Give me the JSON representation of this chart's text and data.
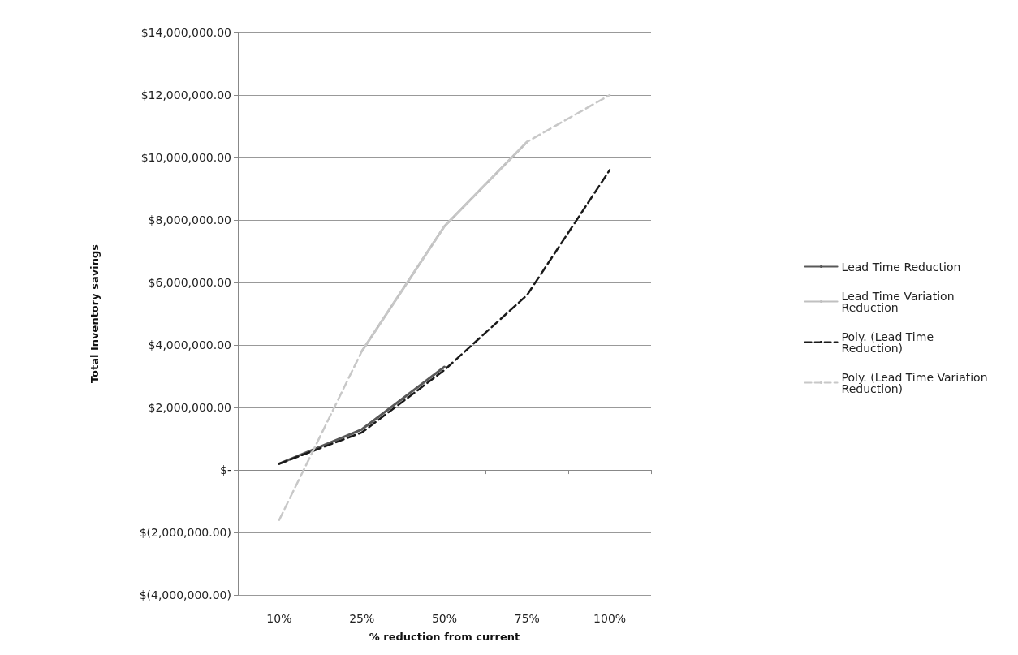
{
  "chart_data": {
    "type": "line",
    "xlabel": "% reduction from current",
    "ylabel": "Total Inventory savings",
    "categories": [
      "10%",
      "25%",
      "50%",
      "75%",
      "100%"
    ],
    "series": [
      {
        "name": "Lead Time Reduction",
        "color": "#595959",
        "values": [
          200000,
          1300000,
          3300000,
          null,
          null
        ]
      },
      {
        "name": "Lead Time Variation Reduction",
        "color": "#c0c0c0",
        "values": [
          null,
          3800000,
          7800000,
          10500000,
          null
        ]
      },
      {
        "name": "Poly. (Lead Time Reduction)",
        "color": "#1a1a1a",
        "line_style": "dashed",
        "values": [
          200000,
          1200000,
          3200000,
          5600000,
          9600000
        ]
      },
      {
        "name": "Poly. (Lead Time Variation Reduction)",
        "color": "#c8c8c8",
        "line_style": "dashed",
        "values": [
          -1600000,
          3800000,
          7800000,
          10500000,
          12000000
        ]
      }
    ],
    "ylim": [
      -4000000,
      14000000
    ],
    "yticks": [
      {
        "value": -4000000,
        "label": "$(4,000,000.00)"
      },
      {
        "value": -2000000,
        "label": "$(2,000,000.00)"
      },
      {
        "value": 0,
        "label": "$-"
      },
      {
        "value": 2000000,
        "label": "$2,000,000.00"
      },
      {
        "value": 4000000,
        "label": "$4,000,000.00"
      },
      {
        "value": 6000000,
        "label": "$6,000,000.00"
      },
      {
        "value": 8000000,
        "label": "$8,000,000.00"
      },
      {
        "value": 10000000,
        "label": "$10,000,000.00"
      },
      {
        "value": 12000000,
        "label": "$12,000,000.00"
      },
      {
        "value": 14000000,
        "label": "$14,000,000.00"
      }
    ],
    "grid": "y",
    "legend": "right",
    "marker": "none",
    "line_style": "solid"
  }
}
